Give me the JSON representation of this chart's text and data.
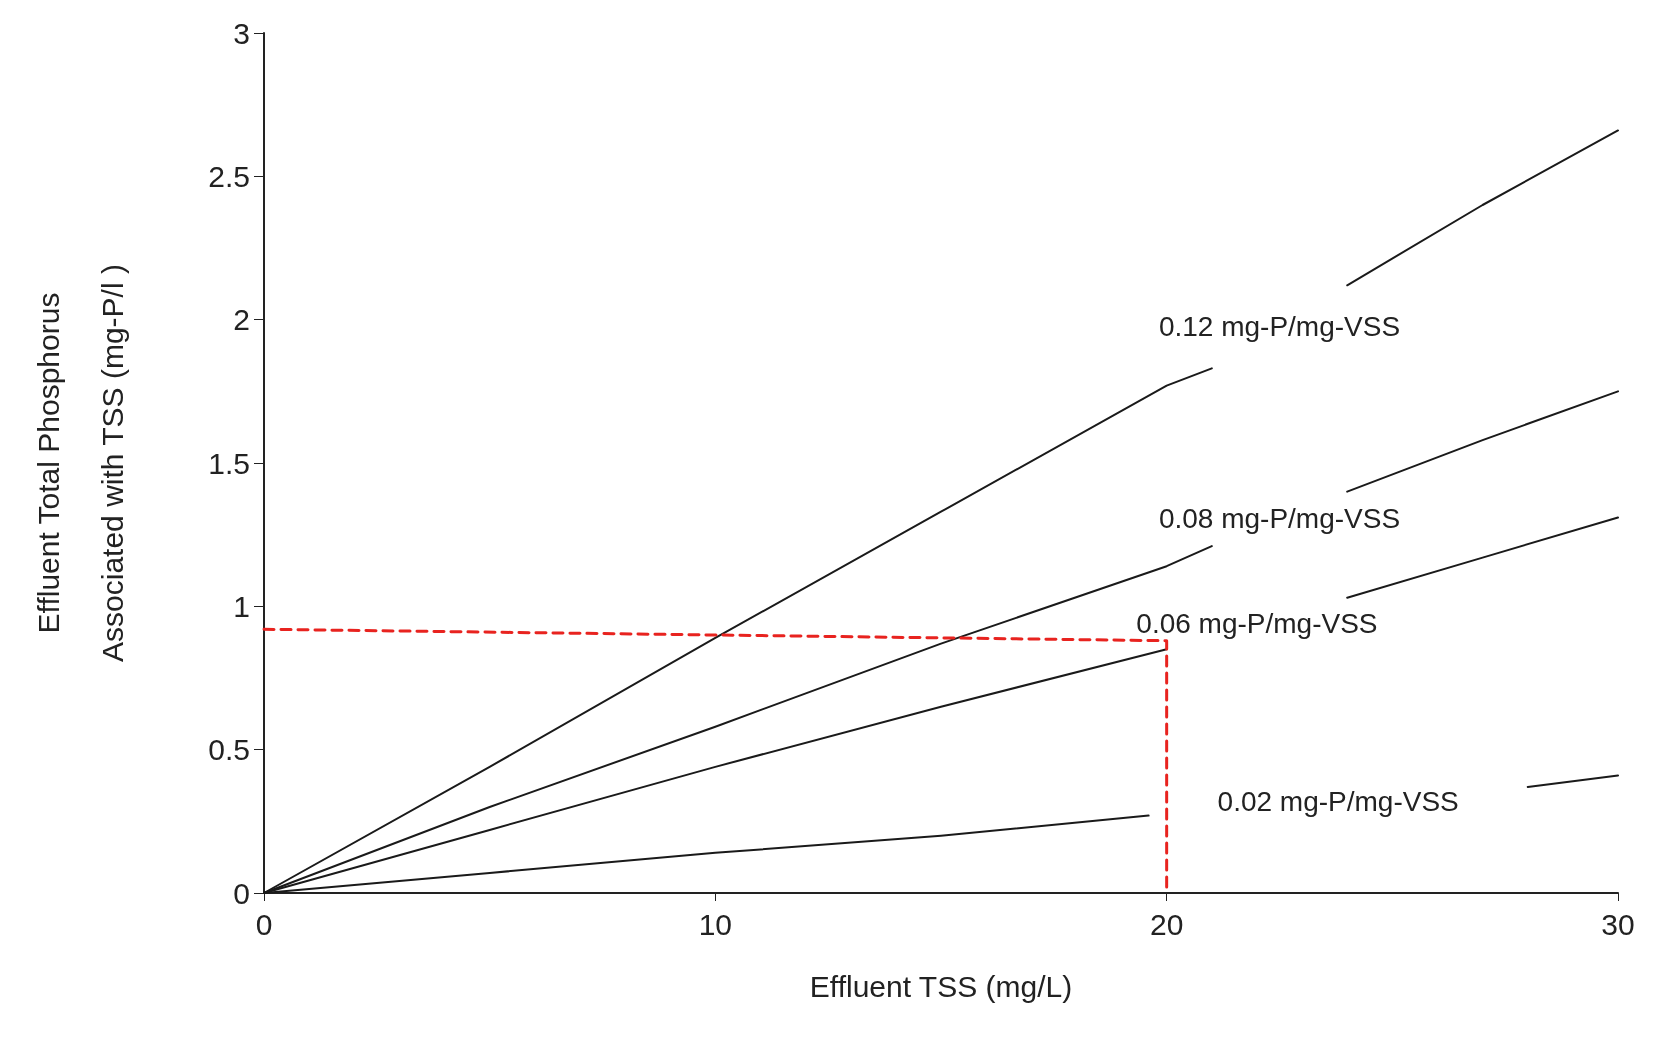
{
  "chart_data": {
    "type": "line",
    "xlabel": "Effluent TSS (mg/L)",
    "ylabel": "Effluent Total Phosphorus\nAssociated with TSS (mg-P/l )",
    "xlim": [
      0,
      30
    ],
    "xticks": [
      0,
      10,
      20,
      30
    ],
    "ylim": [
      0,
      3
    ],
    "yticks": [
      0,
      0.5,
      1,
      1.5,
      2,
      2.5,
      3
    ],
    "grid": false,
    "legend": false,
    "marker": "none",
    "line_style": "solid",
    "series": [
      {
        "name": "0.12 mg-P/mg-VSS",
        "color": "#1a1a1a",
        "x": [
          0,
          5,
          10,
          15,
          20,
          21,
          22,
          23,
          24,
          27,
          30
        ],
        "values": [
          0,
          0.44,
          0.89,
          1.33,
          1.77,
          1.83,
          null,
          null,
          2.12,
          2.4,
          2.66
        ]
      },
      {
        "name": "0.08 mg-P/mg-VSS",
        "color": "#1a1a1a",
        "x": [
          0,
          5,
          10,
          15,
          20,
          21,
          22,
          23,
          24,
          27,
          30
        ],
        "values": [
          0,
          0.3,
          0.58,
          0.87,
          1.14,
          1.21,
          null,
          null,
          1.4,
          1.58,
          1.75
        ]
      },
      {
        "name": "0.06 mg-P/mg-VSS",
        "color": "#1a1a1a",
        "x": [
          0,
          5,
          10,
          15,
          20,
          21,
          22,
          23,
          24,
          27,
          30
        ],
        "values": [
          0,
          0.22,
          0.44,
          0.65,
          0.85,
          null,
          null,
          null,
          1.03,
          1.17,
          1.31
        ]
      },
      {
        "name": "0.02 mg-P/mg-VSS",
        "color": "#1a1a1a",
        "x": [
          0,
          5,
          10,
          15,
          19.6,
          22,
          25,
          28,
          30
        ],
        "values": [
          0,
          0.07,
          0.14,
          0.2,
          0.27,
          null,
          null,
          0.37,
          0.41
        ]
      },
      {
        "color": "#e8231f",
        "line_style": "dashed",
        "x": [
          0,
          20,
          20
        ],
        "values": [
          0.92,
          0.88,
          0
        ]
      }
    ]
  }
}
